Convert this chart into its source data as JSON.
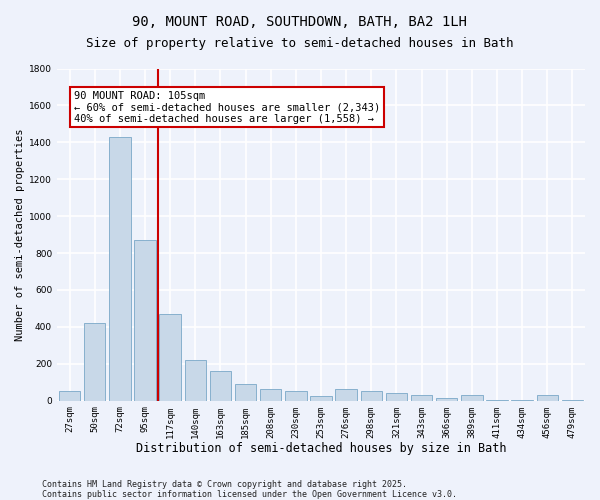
{
  "title": "90, MOUNT ROAD, SOUTHDOWN, BATH, BA2 1LH",
  "subtitle": "Size of property relative to semi-detached houses in Bath",
  "xlabel": "Distribution of semi-detached houses by size in Bath",
  "ylabel": "Number of semi-detached properties",
  "categories": [
    "27sqm",
    "50sqm",
    "72sqm",
    "95sqm",
    "117sqm",
    "140sqm",
    "163sqm",
    "185sqm",
    "208sqm",
    "230sqm",
    "253sqm",
    "276sqm",
    "298sqm",
    "321sqm",
    "343sqm",
    "366sqm",
    "389sqm",
    "411sqm",
    "434sqm",
    "456sqm",
    "479sqm"
  ],
  "values": [
    50,
    420,
    1430,
    870,
    470,
    220,
    160,
    90,
    65,
    50,
    25,
    65,
    50,
    40,
    30,
    15,
    30,
    5,
    5,
    30,
    5
  ],
  "bar_color": "#c8d8e8",
  "bar_edge_color": "#7aa8c8",
  "background_color": "#eef2fb",
  "grid_color": "#ffffff",
  "vline_x": 3.5,
  "vline_color": "#cc0000",
  "annotation_text": "90 MOUNT ROAD: 105sqm\n← 60% of semi-detached houses are smaller (2,343)\n40% of semi-detached houses are larger (1,558) →",
  "annotation_box_color": "#ffffff",
  "annotation_box_edge": "#cc0000",
  "ylim": [
    0,
    1800
  ],
  "yticks": [
    0,
    200,
    400,
    600,
    800,
    1000,
    1200,
    1400,
    1600,
    1800
  ],
  "footer": "Contains HM Land Registry data © Crown copyright and database right 2025.\nContains public sector information licensed under the Open Government Licence v3.0.",
  "title_fontsize": 10,
  "subtitle_fontsize": 9,
  "xlabel_fontsize": 8.5,
  "ylabel_fontsize": 7.5,
  "tick_fontsize": 6.5,
  "annotation_fontsize": 7.5,
  "footer_fontsize": 6
}
